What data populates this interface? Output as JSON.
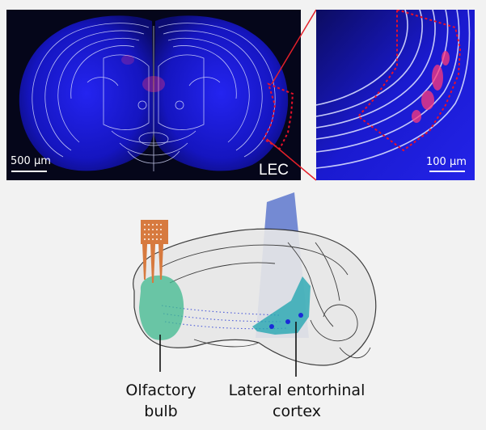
{
  "panels": {
    "coronal": {
      "scale_bar": "500 µm",
      "region": "LEC"
    },
    "zoom": {
      "scale_bar": "100 µm"
    }
  },
  "diagram": {
    "labels": {
      "olfactory_line1": "Olfactory",
      "olfactory_line2": "bulb",
      "lec_line1": "Lateral entorhinal",
      "lec_line2": "cortex"
    }
  },
  "colors": {
    "tissue_blue": "#1a1adc",
    "atlas_outline": "#d8dcff",
    "dashed_region": "#e8102a",
    "neuron_signal": "#ff3a7a",
    "connector_red": "#e4202a",
    "light_beam": "#4a67c8",
    "electrode": "#d77a3f",
    "olfactory_region": "#3fb98f",
    "lec_region": "#27a6b2",
    "cell_dot": "#1a2ad8"
  }
}
